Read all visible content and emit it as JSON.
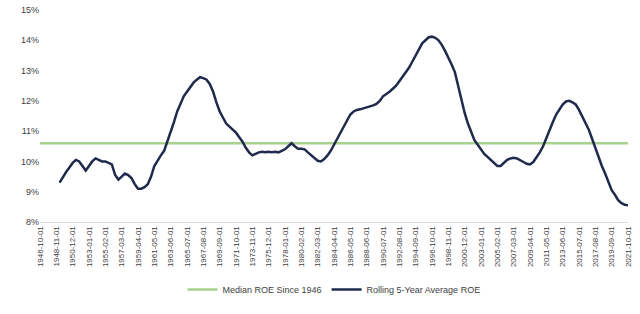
{
  "chart_data": {
    "type": "line",
    "categories": [
      "1946-10-01",
      null,
      null,
      null,
      null,
      "1948-11-01",
      null,
      null,
      null,
      null,
      "1950-12-01",
      null,
      null,
      null,
      null,
      "1953-01-01",
      null,
      null,
      null,
      null,
      "1955-02-01",
      null,
      null,
      null,
      null,
      "1957-03-01",
      null,
      null,
      null,
      null,
      "1959-04-01",
      null,
      null,
      null,
      null,
      "1961-05-01",
      null,
      null,
      null,
      null,
      "1963-06-01",
      null,
      null,
      null,
      null,
      "1965-07-01",
      null,
      null,
      null,
      null,
      "1967-08-01",
      null,
      null,
      null,
      null,
      "1969-09-01",
      null,
      null,
      null,
      null,
      "1971-10-01",
      null,
      null,
      null,
      null,
      "1973-11-01",
      null,
      null,
      null,
      null,
      "1975-12-01",
      null,
      null,
      null,
      null,
      "1978-01-01",
      null,
      null,
      null,
      null,
      "1980-02-01",
      null,
      null,
      null,
      null,
      "1982-03-01",
      null,
      null,
      null,
      null,
      "1984-04-01",
      null,
      null,
      null,
      null,
      "1986-05-01",
      null,
      null,
      null,
      null,
      "1988-06-01",
      null,
      null,
      null,
      null,
      "1990-07-01",
      null,
      null,
      null,
      null,
      "1992-08-01",
      null,
      null,
      null,
      null,
      "1994-09-01",
      null,
      null,
      null,
      null,
      "1996-10-01",
      null,
      null,
      null,
      null,
      "1998-11-01",
      null,
      null,
      null,
      null,
      "2000-12-01",
      null,
      null,
      null,
      null,
      "2003-01-01",
      null,
      null,
      null,
      null,
      "2005-02-01",
      null,
      null,
      null,
      null,
      "2007-03-01",
      null,
      null,
      null,
      null,
      "2009-04-01",
      null,
      null,
      null,
      null,
      "2011-05-01",
      null,
      null,
      null,
      null,
      "2013-06-01",
      null,
      null,
      null,
      null,
      "2015-07-01",
      null,
      null,
      null,
      null,
      "2017-08-01",
      null,
      null,
      null,
      null,
      "2019-09-01",
      null,
      null,
      null,
      null,
      "2021-10-01"
    ],
    "series": [
      {
        "name": "Median ROE Since 1946",
        "color": "#a9d18e",
        "values": [
          10.6,
          10.6,
          10.6,
          10.6,
          10.6,
          10.6,
          10.6,
          10.6,
          10.6,
          10.6,
          10.6,
          10.6,
          10.6,
          10.6,
          10.6,
          10.6,
          10.6,
          10.6,
          10.6,
          10.6,
          10.6,
          10.6,
          10.6,
          10.6,
          10.6,
          10.6,
          10.6,
          10.6,
          10.6,
          10.6,
          10.6,
          10.6,
          10.6,
          10.6,
          10.6,
          10.6,
          10.6,
          10.6,
          10.6,
          10.6,
          10.6,
          10.6,
          10.6,
          10.6,
          10.6,
          10.6,
          10.6,
          10.6,
          10.6,
          10.6,
          10.6,
          10.6,
          10.6,
          10.6,
          10.6,
          10.6,
          10.6,
          10.6,
          10.6,
          10.6,
          10.6,
          10.6,
          10.6,
          10.6,
          10.6,
          10.6,
          10.6,
          10.6,
          10.6,
          10.6,
          10.6,
          10.6,
          10.6,
          10.6,
          10.6,
          10.6,
          10.6,
          10.6,
          10.6,
          10.6,
          10.6,
          10.6,
          10.6,
          10.6,
          10.6,
          10.6,
          10.6,
          10.6,
          10.6,
          10.6,
          10.6,
          10.6,
          10.6,
          10.6,
          10.6,
          10.6,
          10.6,
          10.6,
          10.6,
          10.6,
          10.6,
          10.6,
          10.6,
          10.6,
          10.6,
          10.6,
          10.6,
          10.6,
          10.6,
          10.6,
          10.6,
          10.6,
          10.6,
          10.6,
          10.6,
          10.6,
          10.6,
          10.6,
          10.6,
          10.6,
          10.6,
          10.6,
          10.6,
          10.6,
          10.6,
          10.6,
          10.6,
          10.6,
          10.6,
          10.6,
          10.6,
          10.6,
          10.6,
          10.6,
          10.6,
          10.6,
          10.6,
          10.6,
          10.6,
          10.6,
          10.6,
          10.6,
          10.6,
          10.6,
          10.6,
          10.6,
          10.6,
          10.6,
          10.6,
          10.6,
          10.6,
          10.6,
          10.6,
          10.6,
          10.6,
          10.6,
          10.6,
          10.6,
          10.6,
          10.6,
          10.6,
          10.6,
          10.6,
          10.6,
          10.6,
          10.6,
          10.6,
          10.6,
          10.6,
          10.6,
          10.6,
          10.6,
          10.6,
          10.6,
          10.6,
          10.6,
          10.6,
          10.6,
          10.6,
          10.6,
          10.6
        ]
      },
      {
        "name": "Rolling 5-Year Average ROE",
        "color": "#1f2a4d",
        "values": [
          null,
          null,
          null,
          null,
          null,
          null,
          9.3,
          9.5,
          9.65,
          9.8,
          9.95,
          10.05,
          10.0,
          9.85,
          9.7,
          9.85,
          10.0,
          10.1,
          10.05,
          10.0,
          10.0,
          9.95,
          9.9,
          9.55,
          9.4,
          9.5,
          9.6,
          9.55,
          9.45,
          9.25,
          9.1,
          9.1,
          9.15,
          9.25,
          9.5,
          9.85,
          10.05,
          10.2,
          10.35,
          10.65,
          10.95,
          11.3,
          11.65,
          11.9,
          12.15,
          12.3,
          12.45,
          12.6,
          12.7,
          12.78,
          12.75,
          12.7,
          12.55,
          12.3,
          11.95,
          11.65,
          11.45,
          11.25,
          11.15,
          11.05,
          10.95,
          10.8,
          10.65,
          10.45,
          10.3,
          10.2,
          10.25,
          10.3,
          10.32,
          10.3,
          10.32,
          10.3,
          10.32,
          10.3,
          10.35,
          10.4,
          10.5,
          10.6,
          10.5,
          10.42,
          10.42,
          10.4,
          10.3,
          10.2,
          10.1,
          10.02,
          10.0,
          10.08,
          10.2,
          10.35,
          10.55,
          10.75,
          10.95,
          11.15,
          11.35,
          11.55,
          11.65,
          11.7,
          11.72,
          11.75,
          11.8,
          11.82,
          11.85,
          11.9,
          12.0,
          12.15,
          12.22,
          12.3,
          12.4,
          12.5,
          12.65,
          12.8,
          12.95,
          13.1,
          13.3,
          13.5,
          13.7,
          13.9,
          14.0,
          14.1,
          14.12,
          14.08,
          14.0,
          13.85,
          13.65,
          13.45,
          13.2,
          12.95,
          12.5,
          12.0,
          11.6,
          11.25,
          10.95,
          10.7,
          10.55,
          10.4,
          10.25,
          10.15,
          10.05,
          9.92,
          9.85,
          9.85,
          9.95,
          10.05,
          10.1,
          10.12,
          10.1,
          10.05,
          9.98,
          9.92,
          9.9,
          9.98,
          10.12,
          10.3,
          10.5,
          10.78,
          11.05,
          11.3,
          11.55,
          11.72,
          11.88,
          11.98,
          12.0,
          11.95,
          11.88,
          11.7,
          11.5,
          11.3,
          11.05,
          10.75,
          10.45,
          10.1,
          9.85,
          9.6,
          9.3,
          9.05,
          8.9,
          8.72,
          8.62,
          8.57,
          8.55
        ]
      }
    ],
    "ylim": [
      8,
      15
    ],
    "yticks": [
      {
        "value": 8,
        "label": "8%"
      },
      {
        "value": 9,
        "label": "9%"
      },
      {
        "value": 10,
        "label": "10%"
      },
      {
        "value": 11,
        "label": "11%"
      },
      {
        "value": 12,
        "label": "12%"
      },
      {
        "value": 13,
        "label": "13%"
      },
      {
        "value": 14,
        "label": "14%"
      },
      {
        "value": 15,
        "label": "15%"
      }
    ],
    "grid": false,
    "legend": "bottom"
  }
}
